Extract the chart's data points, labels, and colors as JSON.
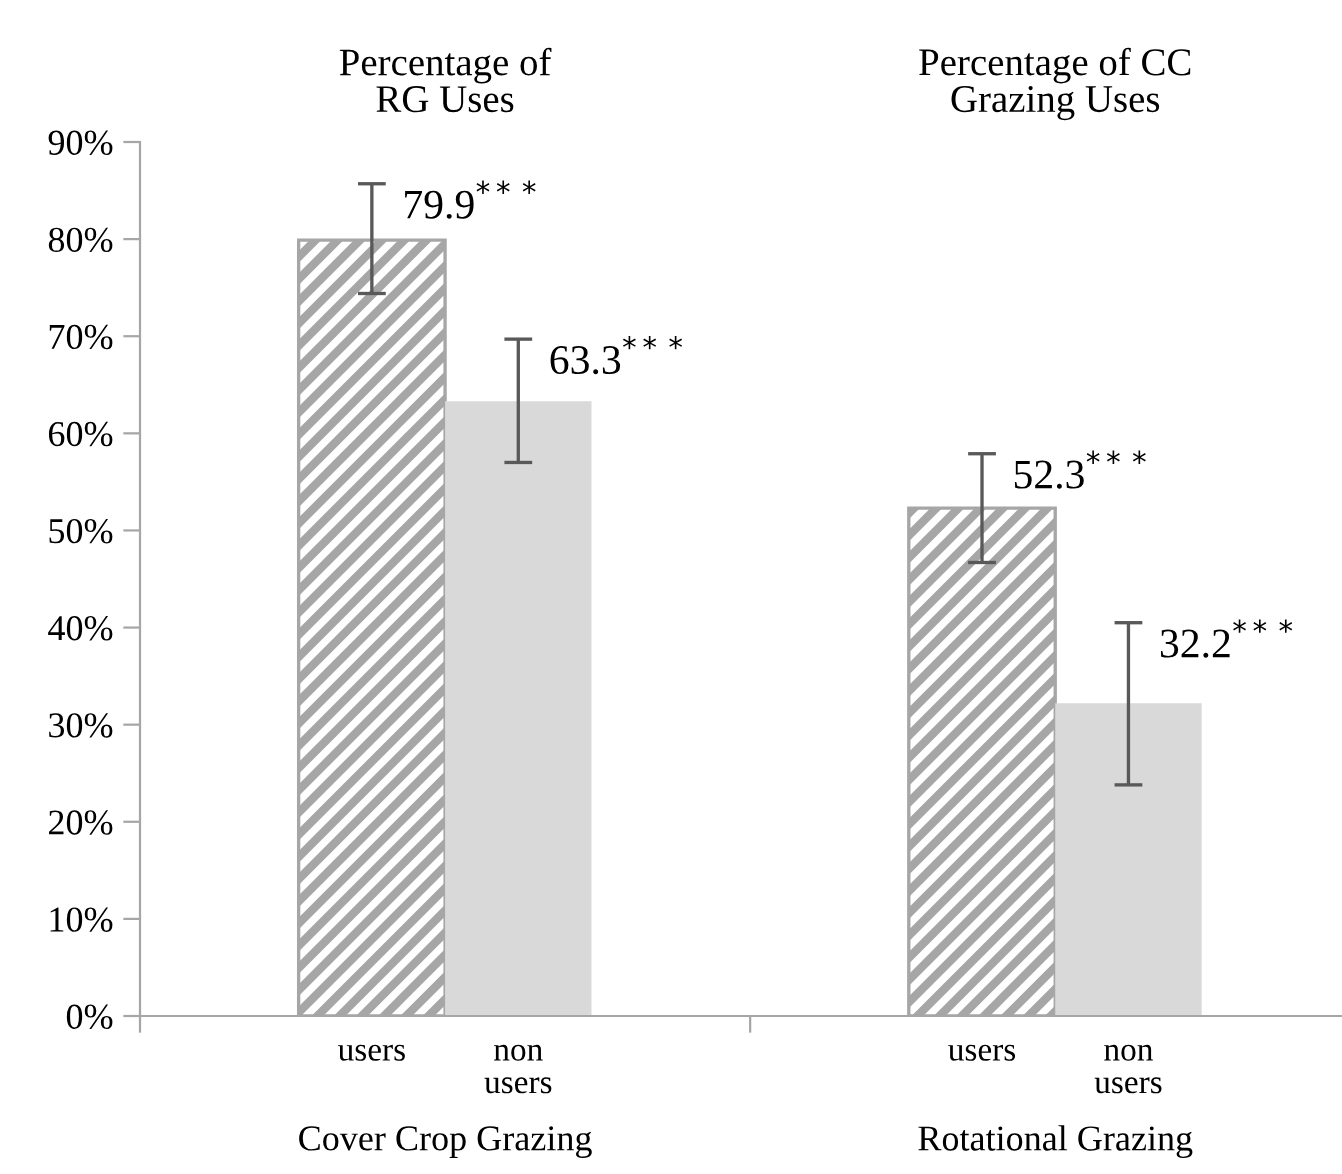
{
  "chart_data": {
    "type": "bar",
    "categories": [
      "Cover Crop Grazing",
      "Rotational Grazing"
    ],
    "series": [
      {
        "name": "users",
        "color": "#a6a6a6",
        "values": [
          79.9,
          52.3
        ],
        "errors": [
          [
            74.4,
            85.7
          ],
          [
            46.7,
            57.9
          ]
        ],
        "value_labels": [
          "79.9$^{***}$",
          "52.3$^{***}$"
        ]
      },
      {
        "name": "non users",
        "color": "#d9d9d9",
        "values": [
          63.3,
          32.2
        ],
        "errors": [
          [
            57.0,
            69.7
          ],
          [
            23.8,
            40.5
          ]
        ],
        "value_labels": [
          "63.3$^{***}$",
          "32.2$^{***}$"
        ]
      }
    ],
    "annotations": [
      "Percentage of\nRG Uses",
      "Percentage of CC\nGrazing Uses"
    ],
    "ylim": [
      0,
      90
    ],
    "yticks": [
      {
        "value": 0,
        "label": "0%"
      },
      {
        "value": 10,
        "label": "10%"
      },
      {
        "value": 20,
        "label": "20%"
      },
      {
        "value": 30,
        "label": "30%"
      },
      {
        "value": 40,
        "label": "40%"
      },
      {
        "value": 50,
        "label": "50%"
      },
      {
        "value": 60,
        "label": "60%"
      },
      {
        "value": 70,
        "label": "70%"
      },
      {
        "value": 80,
        "label": "80%"
      },
      {
        "value": 90,
        "label": "90%"
      }
    ],
    "grid": false
  }
}
